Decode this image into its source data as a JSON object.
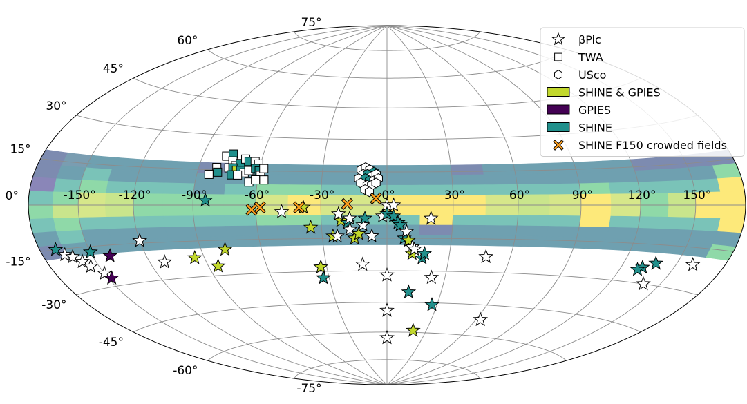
{
  "chart_data": {
    "type": "scatter",
    "projection": "aitoff-hammer",
    "coordinate_system": "galactic",
    "grid": true,
    "legend_position": "top-right",
    "lon_tick_labels": [
      "-150°",
      "-120°",
      "-90°",
      "-60°",
      "-30°",
      "0°",
      "30°",
      "60°",
      "90°",
      "120°",
      "150°"
    ],
    "lat_tick_labels": [
      "75°",
      "60°",
      "45°",
      "30°",
      "15°",
      "0°",
      "-15°",
      "-30°",
      "-45°",
      "-60°",
      "-75°"
    ],
    "lon_ticks": [
      -150,
      -120,
      -90,
      -60,
      -30,
      0,
      30,
      60,
      90,
      120,
      150
    ],
    "lat_ticks": [
      75,
      60,
      45,
      30,
      15,
      0,
      -15,
      -30,
      -45,
      -60,
      -75
    ],
    "band": {
      "lat_range": [
        -18,
        18
      ],
      "rows": [
        -18,
        -13.5,
        -9,
        -4.5,
        0,
        4.5,
        9,
        13.5,
        18
      ],
      "lon_edges": [
        -180,
        -165,
        -150,
        -135,
        -120,
        -105,
        -90,
        -75,
        -60,
        -45,
        -30,
        -15,
        0,
        15,
        30,
        45,
        60,
        75,
        90,
        105,
        120,
        135,
        150,
        165,
        180
      ],
      "cells": [
        [
          "#7d8bb0",
          "#7a9db1",
          "#6fa0b0",
          "#6fa0b0",
          "#6fa0b0",
          "#6fa0b0",
          "#7d8bb0",
          "#6fa0b0",
          "#6fa0b0",
          "#6fa0b0",
          "#6fa0b0",
          "#6fa0b0",
          "#6fa0b0",
          "#6fa0b0",
          "#7d8bb0",
          "#6fa0b0",
          "#6fa0b0",
          "#6fa0b0",
          "#6fa0b0",
          "#6fa0b0",
          "#7d8bb0",
          "#7d8bb0",
          "#7d8bb0",
          "#7d8bb0"
        ],
        [
          "#7d8bb0",
          "#6fa0b0",
          "#7ac3b8",
          "#6fa0b0",
          "#6fa0b0",
          "#6fa0b0",
          "#6fa0b0",
          "#6fa0b0",
          "#6fa0b0",
          "#6fa0b0",
          "#6fa0b0",
          "#6fa0b0",
          "#6fa0b0",
          "#6fa0b0",
          "#6fa0b0",
          "#6fa0b0",
          "#6fa0b0",
          "#6fa0b0",
          "#6fa0b0",
          "#6fa0b0",
          "#6fa0b0",
          "#6fa0b0",
          "#6fa0b0",
          "#8fd9a8"
        ],
        [
          "#8a86b8",
          "#7ac3b8",
          "#8fd9a8",
          "#7ac3b8",
          "#7ac3b8",
          "#7ac3b8",
          "#6fa0b0",
          "#7ac3b8",
          "#8fd9a8",
          "#8fd9a8",
          "#7ac3b8",
          "#7ac3b8",
          "#7ac3b8",
          "#7ac3b8",
          "#7ac3b8",
          "#7ac3b8",
          "#7ac3b8",
          "#7ac3b8",
          "#8fd9a8",
          "#7ac3b8",
          "#7ac3b8",
          "#7ac3b8",
          "#7ac3b8",
          "#fde97a"
        ],
        [
          "#7ac3b8",
          "#8fd9a8",
          "#d6e78a",
          "#c9e58c",
          "#8fd9a8",
          "#8fd9a8",
          "#8fd9a8",
          "#8fd9a8",
          "#d6e78a",
          "#fde97a",
          "#d6e78a",
          "#d6e78a",
          "#fde97a",
          "#fde97a",
          "#fde97a",
          "#d6e78a",
          "#c9e58c",
          "#d6e78a",
          "#fde97a",
          "#d6e78a",
          "#8fd9a8",
          "#c9e58c",
          "#fde97a",
          "#fde97a"
        ],
        [
          "#8fd9a8",
          "#c9e58c",
          "#d6e78a",
          "#c9e58c",
          "#8fd9a8",
          "#8fd9a8",
          "#8fd9a8",
          "#8fd9a8",
          "#d6e78a",
          "#fde97a",
          "#d6e78a",
          "#d6e78a",
          "#fde97a",
          "#fde97a",
          "#fde97a",
          "#d6e78a",
          "#c9e58c",
          "#d6e78a",
          "#fde97a",
          "#d6e78a",
          "#8fd9a8",
          "#c9e58c",
          "#fde97a",
          "#fde97a"
        ],
        [
          "#7ac3b8",
          "#8fd9a8",
          "#7ac3b8",
          "#7ac3b8",
          "#7ac3b8",
          "#7ac3b8",
          "#7ac3b8",
          "#7ac3b8",
          "#8fd9a8",
          "#8fd9a8",
          "#7ac3b8",
          "#7ac3b8",
          "#7ac3b8",
          "#fde97a",
          "#7ac3b8",
          "#7ac3b8",
          "#7ac3b8",
          "#7ac3b8",
          "#fde97a",
          "#7ac3b8",
          "#7ac3b8",
          "#7ac3b8",
          "#7ac3b8",
          "#fde97a"
        ],
        [
          "#6fa0b0",
          "#7ac3b8",
          "#6fa0b0",
          "#6fa0b0",
          "#6fa0b0",
          "#6fa0b0",
          "#6fa0b0",
          "#6fa0b0",
          "#6fa0b0",
          "#6fa0b0",
          "#6fa0b0",
          "#6fa0b0",
          "#6fa0b0",
          "#7d8bb0",
          "#6fa0b0",
          "#6fa0b0",
          "#6fa0b0",
          "#6fa0b0",
          "#6fa0b0",
          "#6fa0b0",
          "#6fa0b0",
          "#6fa0b0",
          "#6fa0b0",
          "#6fa0b0"
        ],
        [
          "#7d8bb0",
          "#6fa0b0",
          "#6fa0b0",
          "#6fa0b0",
          "#6fa0b0",
          "#6fa0b0",
          "#6fa0b0",
          "#6fa0b0",
          "#6fa0b0",
          "#6fa0b0",
          "#6fa0b0",
          "#6fa0b0",
          "#6fa0b0",
          "#6fa0b0",
          "#6fa0b0",
          "#6fa0b0",
          "#6fa0b0",
          "#6fa0b0",
          "#6fa0b0",
          "#6fa0b0",
          "#6fa0b0",
          "#6fa0b0",
          "#6fa0b0",
          "#8fd9a8"
        ]
      ]
    },
    "legend": [
      {
        "label": "βPic",
        "symbol": "star",
        "fill": "#ffffff",
        "kind": "marker"
      },
      {
        "label": "TWA",
        "symbol": "square",
        "fill": "#ffffff",
        "kind": "marker"
      },
      {
        "label": "USco",
        "symbol": "hexagon",
        "fill": "#ffffff",
        "kind": "marker"
      },
      {
        "label": "SHINE & GPIES",
        "fill": "#c2d82c",
        "kind": "patch"
      },
      {
        "label": "GPIES",
        "fill": "#440154",
        "kind": "patch"
      },
      {
        "label": "SHINE",
        "fill": "#21908c",
        "kind": "patch"
      },
      {
        "label": "SHINE F150 crowded fields",
        "symbol": "x",
        "fill": "#ff9f1c",
        "kind": "marker"
      }
    ],
    "colors": {
      "shine_gpies": "#c2d82c",
      "gpies": "#440154",
      "shine": "#21908c",
      "none": "#ffffff",
      "crowded": "#ff9f1c"
    },
    "series": [
      {
        "name": "βPic",
        "symbol": "star",
        "points": [
          {
            "lon": -170,
            "lat": -15,
            "c": "shine"
          },
          {
            "lon": -166,
            "lat": -17,
            "c": "none"
          },
          {
            "lon": -162,
            "lat": -18,
            "c": "none"
          },
          {
            "lon": -158,
            "lat": -20,
            "c": "none"
          },
          {
            "lon": -155,
            "lat": -22,
            "c": "none"
          },
          {
            "lon": -150,
            "lat": -25,
            "c": "none"
          },
          {
            "lon": -148,
            "lat": -27,
            "c": "gpies"
          },
          {
            "lon": -150,
            "lat": -17,
            "c": "shine"
          },
          {
            "lon": -140,
            "lat": -19,
            "c": "gpies"
          },
          {
            "lon": -120,
            "lat": -14,
            "c": "none"
          },
          {
            "lon": -112,
            "lat": -23,
            "c": "none"
          },
          {
            "lon": -95,
            "lat": -22,
            "c": "shine_gpies"
          },
          {
            "lon": -85,
            "lat": -26,
            "c": "shine_gpies"
          },
          {
            "lon": -78,
            "lat": -19,
            "c": "shine_gpies"
          },
          {
            "lon": -84,
            "lat": 2,
            "c": "shine"
          },
          {
            "lon": -48,
            "lat": -3,
            "c": "none"
          },
          {
            "lon": -38,
            "lat": -1,
            "c": "shine_gpies"
          },
          {
            "lon": -35,
            "lat": -10,
            "c": "shine_gpies"
          },
          {
            "lon": -33,
            "lat": -28,
            "c": "shine_gpies"
          },
          {
            "lon": -33,
            "lat": -33,
            "c": "shine"
          },
          {
            "lon": -25,
            "lat": -14,
            "c": "shine_gpies"
          },
          {
            "lon": -23,
            "lat": -14,
            "c": "none"
          },
          {
            "lon": -21,
            "lat": -7,
            "c": "shine_gpies"
          },
          {
            "lon": -22,
            "lat": -4,
            "c": "none"
          },
          {
            "lon": -18,
            "lat": -8,
            "c": "shine"
          },
          {
            "lon": -17,
            "lat": -6,
            "c": "none"
          },
          {
            "lon": -17,
            "lat": -11,
            "c": "none"
          },
          {
            "lon": -15,
            "lat": -15,
            "c": "shine_gpies"
          },
          {
            "lon": -13,
            "lat": -13,
            "c": "shine_gpies"
          },
          {
            "lon": -12,
            "lat": -27,
            "c": "none"
          },
          {
            "lon": -11,
            "lat": -9,
            "c": "none"
          },
          {
            "lon": -10,
            "lat": -6,
            "c": "shine"
          },
          {
            "lon": -7,
            "lat": -14,
            "c": "none"
          },
          {
            "lon": -2,
            "lat": -5,
            "c": "none"
          },
          {
            "lon": 0,
            "lat": 0,
            "c": "none"
          },
          {
            "lon": 0,
            "lat": -32,
            "c": "none"
          },
          {
            "lon": 0,
            "lat": -4,
            "c": "shine"
          },
          {
            "lon": 3,
            "lat": 0,
            "c": "none"
          },
          {
            "lon": 3,
            "lat": -5,
            "c": "shine"
          },
          {
            "lon": 5,
            "lat": -8,
            "c": "shine"
          },
          {
            "lon": 6,
            "lat": -9,
            "c": "shine"
          },
          {
            "lon": 8,
            "lat": -15,
            "c": "shine"
          },
          {
            "lon": 9,
            "lat": -12,
            "c": "none"
          },
          {
            "lon": 10,
            "lat": -16,
            "c": "shine_gpies"
          },
          {
            "lon": 12,
            "lat": -19,
            "c": "none"
          },
          {
            "lon": 12,
            "lat": -22,
            "c": "shine_gpies"
          },
          {
            "lon": 13,
            "lat": -20,
            "c": "none"
          },
          {
            "lon": 17,
            "lat": -24,
            "c": "shine"
          },
          {
            "lon": 18,
            "lat": -22,
            "c": "shine"
          },
          {
            "lon": 20,
            "lat": -6,
            "c": "none"
          },
          {
            "lon": 23,
            "lat": -33,
            "c": "none"
          },
          {
            "lon": 48,
            "lat": -23,
            "c": "none"
          },
          {
            "lon": 12,
            "lat": -40,
            "c": "shine"
          },
          {
            "lon": 0,
            "lat": -49,
            "c": "none"
          },
          {
            "lon": 27,
            "lat": -46,
            "c": "shine"
          },
          {
            "lon": 20,
            "lat": -59,
            "c": "shine_gpies"
          },
          {
            "lon": 0,
            "lat": -63,
            "c": "none"
          },
          {
            "lon": 63,
            "lat": -52,
            "c": "none"
          },
          {
            "lon": 132,
            "lat": -24,
            "c": "shine"
          },
          {
            "lon": 130,
            "lat": -25,
            "c": "shine"
          },
          {
            "lon": 138,
            "lat": -22,
            "c": "shine"
          },
          {
            "lon": 140,
            "lat": -30,
            "c": "none"
          },
          {
            "lon": 160,
            "lat": -21,
            "c": "none"
          }
        ]
      },
      {
        "name": "TWA",
        "symbol": "square",
        "points": [
          {
            "lon": -78,
            "lat": 21,
            "c": "none"
          },
          {
            "lon": -75,
            "lat": 22,
            "c": "shine"
          },
          {
            "lon": -74,
            "lat": 19,
            "c": "none"
          },
          {
            "lon": -72,
            "lat": 17,
            "c": "none"
          },
          {
            "lon": -70,
            "lat": 18,
            "c": "shine"
          },
          {
            "lon": -68,
            "lat": 20,
            "c": "none"
          },
          {
            "lon": -66,
            "lat": 19,
            "c": "shine"
          },
          {
            "lon": -63,
            "lat": 19,
            "c": "none"
          },
          {
            "lon": -61,
            "lat": 18,
            "c": "none"
          },
          {
            "lon": -75,
            "lat": 16,
            "c": "none"
          },
          {
            "lon": -73,
            "lat": 16,
            "c": "shine"
          },
          {
            "lon": -71,
            "lat": 15,
            "c": "shine_gpies"
          },
          {
            "lon": -69,
            "lat": 15,
            "c": "shine"
          },
          {
            "lon": -67,
            "lat": 14,
            "c": "none"
          },
          {
            "lon": -65,
            "lat": 15,
            "c": "none"
          },
          {
            "lon": -62,
            "lat": 16,
            "c": "shine"
          },
          {
            "lon": -60,
            "lat": 15,
            "c": "shine"
          },
          {
            "lon": -59,
            "lat": 13,
            "c": "none"
          },
          {
            "lon": -81,
            "lat": 16,
            "c": "none"
          },
          {
            "lon": -80,
            "lat": 14,
            "c": "shine"
          },
          {
            "lon": -84,
            "lat": 13,
            "c": "none"
          },
          {
            "lon": -73,
            "lat": 13,
            "c": "shine"
          },
          {
            "lon": -70,
            "lat": 13,
            "c": "none"
          },
          {
            "lon": -64,
            "lat": 10,
            "c": "none"
          },
          {
            "lon": -61,
            "lat": 11,
            "c": "none"
          },
          {
            "lon": -57,
            "lat": 11,
            "c": "none"
          },
          {
            "lon": -58,
            "lat": 16,
            "c": "none"
          }
        ]
      },
      {
        "name": "USco",
        "symbol": "hexagon",
        "points": [
          {
            "lon": -12,
            "lat": 16,
            "c": "none"
          },
          {
            "lon": -10,
            "lat": 17,
            "c": "none"
          },
          {
            "lon": -8,
            "lat": 16,
            "c": "none"
          },
          {
            "lon": -6,
            "lat": 15,
            "c": "shine"
          },
          {
            "lon": -11,
            "lat": 14,
            "c": "none"
          },
          {
            "lon": -9,
            "lat": 14,
            "c": "shine"
          },
          {
            "lon": -7,
            "lat": 13,
            "c": "none"
          },
          {
            "lon": -5,
            "lat": 14,
            "c": "none"
          },
          {
            "lon": -13,
            "lat": 12,
            "c": "none"
          },
          {
            "lon": -10,
            "lat": 12,
            "c": "shine"
          },
          {
            "lon": -8,
            "lat": 11,
            "c": "shine"
          },
          {
            "lon": -6,
            "lat": 11,
            "c": "none"
          },
          {
            "lon": -4,
            "lat": 12,
            "c": "none"
          },
          {
            "lon": -12,
            "lat": 10,
            "c": "none"
          },
          {
            "lon": -9,
            "lat": 9,
            "c": "none"
          },
          {
            "lon": -7,
            "lat": 9,
            "c": "none"
          },
          {
            "lon": -5,
            "lat": 10,
            "c": "none"
          },
          {
            "lon": -10,
            "lat": 7,
            "c": "none"
          },
          {
            "lon": -8,
            "lat": 6,
            "c": "none"
          }
        ]
      },
      {
        "name": "SHINE F150 crowded fields",
        "symbol": "x",
        "points": [
          {
            "lon": -62,
            "lat": -2,
            "c": "crowded"
          },
          {
            "lon": -58,
            "lat": -1,
            "c": "crowded"
          },
          {
            "lon": -40,
            "lat": -1,
            "c": "crowded"
          },
          {
            "lon": -18,
            "lat": 0.5,
            "c": "crowded"
          },
          {
            "lon": -5,
            "lat": 3,
            "c": "crowded"
          }
        ]
      }
    ]
  }
}
